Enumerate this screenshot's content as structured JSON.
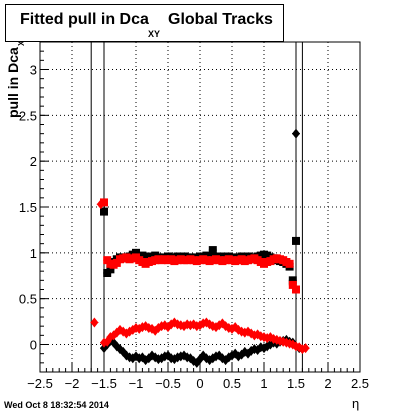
{
  "title": {
    "main": "Fitted pull in Dca",
    "sub": "XY",
    "rest": "Global Tracks"
  },
  "timestamp": "Wed Oct  8 18:32:54 2014",
  "chart_data": {
    "type": "scatter",
    "title": "Fitted pull in Dca XY Global Tracks",
    "ylabel": "pull in Dca",
    "ylabel_sub": "XY",
    "xlabel": "η",
    "xlim": [
      -2.5,
      2.5
    ],
    "ylim": [
      -0.3,
      3.3
    ],
    "x_ticks": [
      -2.5,
      -2,
      -1.5,
      -1,
      -0.5,
      0,
      0.5,
      1,
      1.5,
      2,
      2.5
    ],
    "x_tick_labels": [
      "−2.5",
      "−2",
      "−1.5",
      "−1",
      "−0.5",
      "0",
      "0.5",
      "1",
      "1.5",
      "2",
      "2.5"
    ],
    "y_ticks": [
      0,
      0.5,
      1,
      1.5,
      2,
      2.5,
      3
    ],
    "y_tick_labels": [
      "0",
      "0.5",
      "1",
      "1.5",
      "2",
      "2.5",
      "3"
    ],
    "grid": true,
    "vertical_lines": [
      -1.7,
      -1.5,
      1.5,
      1.6
    ],
    "series": [
      {
        "color": "#000000",
        "marker": "square",
        "points": [
          [
            -1.5,
            1.45
          ],
          [
            -1.45,
            0.78
          ],
          [
            -1.4,
            0.82
          ],
          [
            -1.35,
            0.9
          ],
          [
            -1.3,
            0.93
          ],
          [
            -1.25,
            0.95
          ],
          [
            -1.2,
            0.95
          ],
          [
            -1.15,
            0.94
          ],
          [
            -1.1,
            0.96
          ],
          [
            -1.05,
            0.98
          ],
          [
            -1.0,
            1.0
          ],
          [
            -0.95,
            0.96
          ],
          [
            -0.9,
            0.97
          ],
          [
            -0.85,
            0.95
          ],
          [
            -0.8,
            0.96
          ],
          [
            -0.75,
            0.95
          ],
          [
            -0.7,
            0.97
          ],
          [
            -0.65,
            0.95
          ],
          [
            -0.6,
            0.94
          ],
          [
            -0.55,
            0.95
          ],
          [
            -0.5,
            0.96
          ],
          [
            -0.45,
            0.95
          ],
          [
            -0.4,
            0.95
          ],
          [
            -0.35,
            0.96
          ],
          [
            -0.3,
            0.95
          ],
          [
            -0.25,
            0.96
          ],
          [
            -0.2,
            0.95
          ],
          [
            -0.15,
            0.95
          ],
          [
            -0.1,
            0.94
          ],
          [
            -0.05,
            0.95
          ],
          [
            0.0,
            0.96
          ],
          [
            0.05,
            0.95
          ],
          [
            0.1,
            0.97
          ],
          [
            0.15,
            0.95
          ],
          [
            0.2,
            1.03
          ],
          [
            0.25,
            0.96
          ],
          [
            0.3,
            0.95
          ],
          [
            0.35,
            0.96
          ],
          [
            0.4,
            0.95
          ],
          [
            0.45,
            0.96
          ],
          [
            0.5,
            0.95
          ],
          [
            0.55,
            0.94
          ],
          [
            0.6,
            0.95
          ],
          [
            0.65,
            0.96
          ],
          [
            0.7,
            0.95
          ],
          [
            0.75,
            0.96
          ],
          [
            0.8,
            0.95
          ],
          [
            0.85,
            0.93
          ],
          [
            0.9,
            0.96
          ],
          [
            0.95,
            0.97
          ],
          [
            1.0,
            0.98
          ],
          [
            1.05,
            0.97
          ],
          [
            1.1,
            0.95
          ],
          [
            1.15,
            0.94
          ],
          [
            1.2,
            0.92
          ],
          [
            1.25,
            0.91
          ],
          [
            1.3,
            0.9
          ],
          [
            1.35,
            0.88
          ],
          [
            1.4,
            0.85
          ],
          [
            1.45,
            0.7
          ],
          [
            1.5,
            1.13
          ]
        ]
      },
      {
        "color": "#ff0000",
        "marker": "square",
        "points": [
          [
            -1.5,
            1.55
          ],
          [
            -1.45,
            0.92
          ],
          [
            -1.4,
            0.88
          ],
          [
            -1.35,
            0.87
          ],
          [
            -1.3,
            0.89
          ],
          [
            -1.25,
            0.93
          ],
          [
            -1.2,
            0.94
          ],
          [
            -1.15,
            0.95
          ],
          [
            -1.1,
            0.93
          ],
          [
            -1.05,
            0.94
          ],
          [
            -1.0,
            0.95
          ],
          [
            -0.95,
            0.92
          ],
          [
            -0.9,
            0.9
          ],
          [
            -0.85,
            0.88
          ],
          [
            -0.8,
            0.9
          ],
          [
            -0.75,
            0.91
          ],
          [
            -0.7,
            0.92
          ],
          [
            -0.65,
            0.93
          ],
          [
            -0.6,
            0.92
          ],
          [
            -0.55,
            0.93
          ],
          [
            -0.5,
            0.92
          ],
          [
            -0.45,
            0.93
          ],
          [
            -0.4,
            0.91
          ],
          [
            -0.35,
            0.92
          ],
          [
            -0.3,
            0.93
          ],
          [
            -0.25,
            0.92
          ],
          [
            -0.2,
            0.92
          ],
          [
            -0.15,
            0.93
          ],
          [
            -0.1,
            0.92
          ],
          [
            -0.05,
            0.91
          ],
          [
            0.0,
            0.92
          ],
          [
            0.05,
            0.93
          ],
          [
            0.1,
            0.92
          ],
          [
            0.15,
            0.91
          ],
          [
            0.2,
            0.92
          ],
          [
            0.25,
            0.93
          ],
          [
            0.3,
            0.92
          ],
          [
            0.35,
            0.91
          ],
          [
            0.4,
            0.92
          ],
          [
            0.45,
            0.93
          ],
          [
            0.5,
            0.92
          ],
          [
            0.55,
            0.91
          ],
          [
            0.6,
            0.92
          ],
          [
            0.65,
            0.93
          ],
          [
            0.7,
            0.91
          ],
          [
            0.75,
            0.92
          ],
          [
            0.8,
            0.93
          ],
          [
            0.85,
            0.94
          ],
          [
            0.9,
            0.92
          ],
          [
            0.95,
            0.9
          ],
          [
            1.0,
            0.88
          ],
          [
            1.05,
            0.9
          ],
          [
            1.1,
            0.91
          ],
          [
            1.15,
            0.93
          ],
          [
            1.2,
            0.94
          ],
          [
            1.25,
            0.93
          ],
          [
            1.3,
            0.92
          ],
          [
            1.35,
            0.9
          ],
          [
            1.4,
            0.88
          ],
          [
            1.45,
            0.65
          ],
          [
            1.5,
            0.6
          ]
        ]
      },
      {
        "color": "#000000",
        "marker": "diamond",
        "points": [
          [
            -1.5,
            -0.04
          ],
          [
            -1.45,
            0.0
          ],
          [
            -1.4,
            0.04
          ],
          [
            -1.35,
            0.02
          ],
          [
            -1.3,
            -0.02
          ],
          [
            -1.25,
            -0.05
          ],
          [
            -1.2,
            -0.08
          ],
          [
            -1.15,
            -0.12
          ],
          [
            -1.1,
            -0.14
          ],
          [
            -1.05,
            -0.15
          ],
          [
            -1.0,
            -0.13
          ],
          [
            -0.95,
            -0.15
          ],
          [
            -0.9,
            -0.14
          ],
          [
            -0.85,
            -0.17
          ],
          [
            -0.8,
            -0.15
          ],
          [
            -0.75,
            -0.12
          ],
          [
            -0.7,
            -0.14
          ],
          [
            -0.65,
            -0.16
          ],
          [
            -0.6,
            -0.15
          ],
          [
            -0.55,
            -0.13
          ],
          [
            -0.5,
            -0.12
          ],
          [
            -0.45,
            -0.15
          ],
          [
            -0.4,
            -0.16
          ],
          [
            -0.35,
            -0.14
          ],
          [
            -0.3,
            -0.13
          ],
          [
            -0.25,
            -0.12
          ],
          [
            -0.2,
            -0.14
          ],
          [
            -0.15,
            -0.15
          ],
          [
            -0.1,
            -0.18
          ],
          [
            -0.05,
            -0.2
          ],
          [
            0.0,
            -0.16
          ],
          [
            0.05,
            -0.12
          ],
          [
            0.1,
            -0.15
          ],
          [
            0.15,
            -0.17
          ],
          [
            0.2,
            -0.15
          ],
          [
            0.25,
            -0.13
          ],
          [
            0.3,
            -0.12
          ],
          [
            0.35,
            -0.15
          ],
          [
            0.4,
            -0.17
          ],
          [
            0.45,
            -0.14
          ],
          [
            0.5,
            -0.12
          ],
          [
            0.55,
            -0.1
          ],
          [
            0.6,
            -0.13
          ],
          [
            0.65,
            -0.11
          ],
          [
            0.7,
            -0.08
          ],
          [
            0.75,
            -0.1
          ],
          [
            0.8,
            -0.07
          ],
          [
            0.85,
            -0.05
          ],
          [
            0.9,
            -0.06
          ],
          [
            0.95,
            -0.03
          ],
          [
            1.0,
            -0.04
          ],
          [
            1.05,
            -0.02
          ],
          [
            1.1,
            0.0
          ],
          [
            1.15,
            0.02
          ],
          [
            1.2,
            0.01
          ],
          [
            1.25,
            0.03
          ],
          [
            1.3,
            0.04
          ],
          [
            1.35,
            0.05
          ],
          [
            1.4,
            0.03
          ],
          [
            1.45,
            0.02
          ],
          [
            1.5,
            2.3
          ],
          [
            1.55,
            -0.04
          ]
        ]
      },
      {
        "color": "#ff0000",
        "marker": "diamond",
        "points": [
          [
            -1.65,
            0.24
          ],
          [
            -1.55,
            1.53
          ],
          [
            -1.5,
            0.02
          ],
          [
            -1.45,
            0.03
          ],
          [
            -1.4,
            0.08
          ],
          [
            -1.35,
            0.1
          ],
          [
            -1.3,
            0.13
          ],
          [
            -1.25,
            0.16
          ],
          [
            -1.2,
            0.14
          ],
          [
            -1.15,
            0.12
          ],
          [
            -1.1,
            0.14
          ],
          [
            -1.05,
            0.16
          ],
          [
            -1.0,
            0.18
          ],
          [
            -0.95,
            0.17
          ],
          [
            -0.9,
            0.19
          ],
          [
            -0.85,
            0.2
          ],
          [
            -0.8,
            0.18
          ],
          [
            -0.75,
            0.17
          ],
          [
            -0.7,
            0.15
          ],
          [
            -0.65,
            0.18
          ],
          [
            -0.6,
            0.2
          ],
          [
            -0.55,
            0.21
          ],
          [
            -0.5,
            0.19
          ],
          [
            -0.45,
            0.22
          ],
          [
            -0.4,
            0.24
          ],
          [
            -0.35,
            0.22
          ],
          [
            -0.3,
            0.21
          ],
          [
            -0.25,
            0.2
          ],
          [
            -0.2,
            0.22
          ],
          [
            -0.15,
            0.21
          ],
          [
            -0.1,
            0.22
          ],
          [
            -0.05,
            0.2
          ],
          [
            0.0,
            0.21
          ],
          [
            0.05,
            0.23
          ],
          [
            0.1,
            0.24
          ],
          [
            0.15,
            0.22
          ],
          [
            0.2,
            0.2
          ],
          [
            0.25,
            0.19
          ],
          [
            0.3,
            0.21
          ],
          [
            0.35,
            0.23
          ],
          [
            0.4,
            0.2
          ],
          [
            0.45,
            0.18
          ],
          [
            0.5,
            0.17
          ],
          [
            0.55,
            0.19
          ],
          [
            0.6,
            0.16
          ],
          [
            0.65,
            0.14
          ],
          [
            0.7,
            0.13
          ],
          [
            0.75,
            0.14
          ],
          [
            0.8,
            0.12
          ],
          [
            0.85,
            0.1
          ],
          [
            0.9,
            0.11
          ],
          [
            0.95,
            0.09
          ],
          [
            1.0,
            0.08
          ],
          [
            1.05,
            0.07
          ],
          [
            1.1,
            0.08
          ],
          [
            1.15,
            0.06
          ],
          [
            1.2,
            0.05
          ],
          [
            1.25,
            0.04
          ],
          [
            1.3,
            0.03
          ],
          [
            1.35,
            0.02
          ],
          [
            1.4,
            0.01
          ],
          [
            1.45,
            0.0
          ],
          [
            1.5,
            -0.02
          ],
          [
            1.55,
            -0.03
          ],
          [
            1.6,
            -0.05
          ],
          [
            1.65,
            -0.04
          ]
        ]
      }
    ]
  }
}
